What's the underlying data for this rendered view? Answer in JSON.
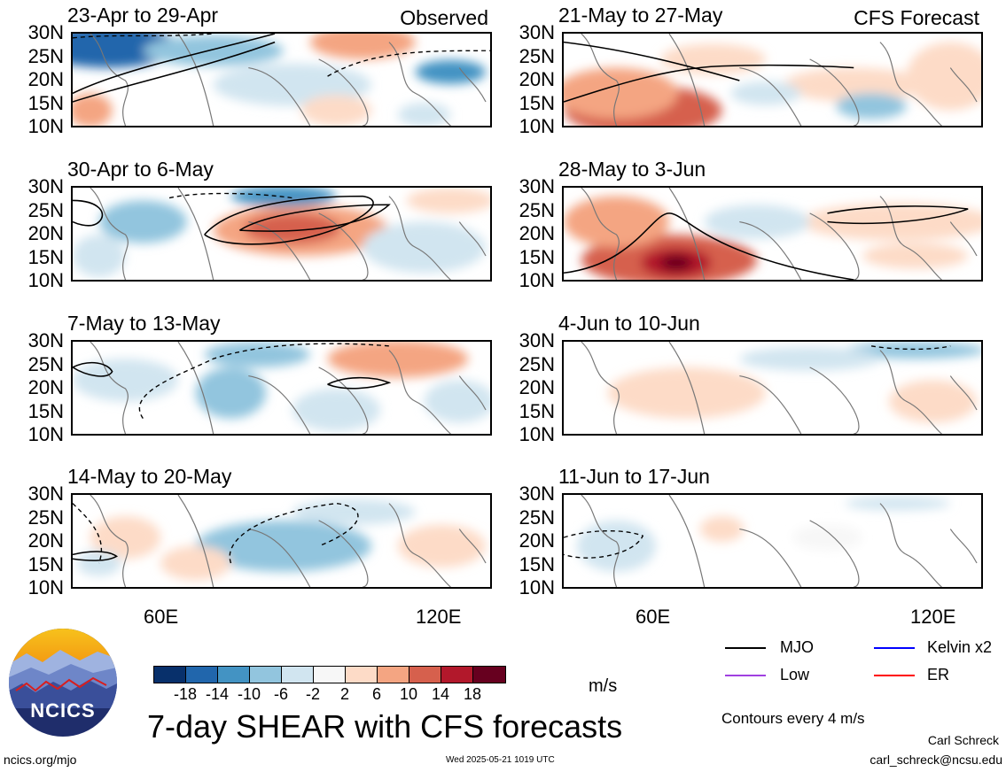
{
  "panels": [
    {
      "title": "23-Apr to 29-Apr",
      "label": "Observed",
      "fill": "obs1"
    },
    {
      "title": "21-May to 27-May",
      "label": "CFS Forecast",
      "fill": "fc1"
    },
    {
      "title": "30-Apr to 6-May",
      "label": "",
      "fill": "obs2"
    },
    {
      "title": "28-May to 3-Jun",
      "label": "",
      "fill": "fc2"
    },
    {
      "title": "7-May to 13-May",
      "label": "",
      "fill": "obs3"
    },
    {
      "title": "4-Jun to 10-Jun",
      "label": "",
      "fill": "fc3"
    },
    {
      "title": "14-May to 20-May",
      "label": "",
      "fill": "obs4"
    },
    {
      "title": "11-Jun to 17-Jun",
      "label": "",
      "fill": "fc4"
    }
  ],
  "y_ticks": [
    "30N",
    "25N",
    "20N",
    "15N",
    "10N"
  ],
  "x_ticks": [
    "60E",
    "120E"
  ],
  "colorbar": {
    "ticks": [
      "-18",
      "-14",
      "-10",
      "-6",
      "-2",
      "2",
      "6",
      "10",
      "14",
      "18"
    ],
    "colors": [
      "#08306b",
      "#2166ac",
      "#4393c3",
      "#92c5de",
      "#d1e5f0",
      "#f7f7f7",
      "#fddbc7",
      "#f4a582",
      "#d6604d",
      "#b2182b",
      "#67001f"
    ],
    "unit": "m/s"
  },
  "legend": {
    "items": [
      {
        "label": "MJO",
        "color": "#000000"
      },
      {
        "label": "Kelvin x2",
        "color": "#0000ff"
      },
      {
        "label": "Low",
        "color": "#a040e0"
      },
      {
        "label": "ER",
        "color": "#ff0000"
      }
    ],
    "note": "Contours every 4 m/s"
  },
  "main_title": "7-day SHEAR with CFS forecasts",
  "logo_text": "NCICS",
  "footer": {
    "url": "ncics.org/mjo",
    "timestamp": "Wed 2025-05-21 1019 UTC",
    "author": "Carl Schreck",
    "email": "carl_schreck@ncsu.edu"
  }
}
